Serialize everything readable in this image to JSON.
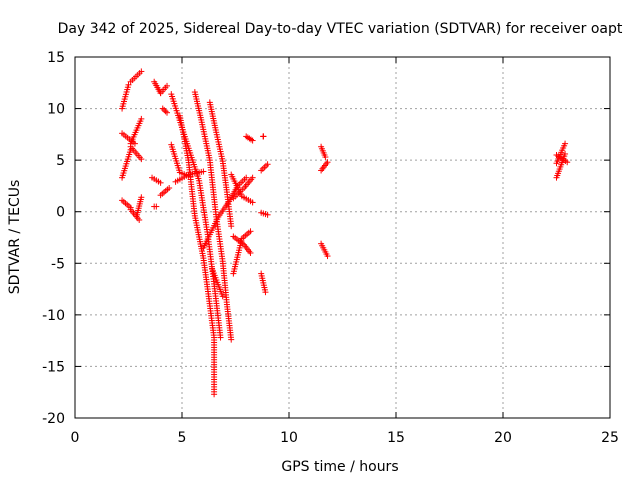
{
  "chart_data": {
    "type": "scatter",
    "title": "Day 342 of 2025, Sidereal Day-to-day VTEC variation (SDTVAR) for receiver oapt",
    "xlabel": "GPS time / hours",
    "ylabel": "SDTVAR / TECUs",
    "xlim": [
      0,
      25
    ],
    "ylim": [
      -20,
      15
    ],
    "xticks": [
      0,
      5,
      10,
      15,
      20,
      25
    ],
    "yticks": [
      -20,
      -15,
      -10,
      -5,
      0,
      5,
      10,
      15
    ],
    "grid": true,
    "marker": "+",
    "color": "#ff0000",
    "segments": [
      {
        "points": [
          [
            2.2,
            10.0
          ],
          [
            2.5,
            12.3
          ]
        ]
      },
      {
        "points": [
          [
            2.6,
            12.6
          ],
          [
            3.1,
            13.6
          ]
        ]
      },
      {
        "points": [
          [
            2.2,
            7.6
          ],
          [
            2.8,
            6.6
          ]
        ]
      },
      {
        "points": [
          [
            2.6,
            6.6
          ],
          [
            3.1,
            9.0
          ]
        ]
      },
      {
        "points": [
          [
            2.6,
            6.3
          ],
          [
            3.1,
            5.1
          ]
        ]
      },
      {
        "points": [
          [
            2.2,
            3.3
          ],
          [
            2.6,
            6.0
          ]
        ]
      },
      {
        "points": [
          [
            2.2,
            1.1
          ],
          [
            2.6,
            0.4
          ]
        ]
      },
      {
        "points": [
          [
            2.6,
            0.2
          ],
          [
            3.0,
            -0.8
          ]
        ]
      },
      {
        "points": [
          [
            2.9,
            -0.3
          ],
          [
            3.1,
            1.4
          ]
        ]
      },
      {
        "points": [
          [
            3.7,
            12.6
          ],
          [
            4.0,
            11.5
          ]
        ]
      },
      {
        "points": [
          [
            4.0,
            11.5
          ],
          [
            4.3,
            12.2
          ]
        ]
      },
      {
        "points": [
          [
            4.1,
            10.0
          ],
          [
            4.3,
            9.6
          ]
        ]
      },
      {
        "points": [
          [
            3.6,
            3.3
          ],
          [
            4.0,
            2.8
          ]
        ]
      },
      {
        "points": [
          [
            4.0,
            1.6
          ],
          [
            4.4,
            2.3
          ]
        ]
      },
      {
        "points": [
          [
            3.7,
            0.5
          ],
          [
            3.8,
            0.5
          ]
        ]
      },
      {
        "points": [
          [
            4.5,
            6.5
          ],
          [
            4.9,
            3.8
          ],
          [
            5.4,
            3.4
          ]
        ]
      },
      {
        "points": [
          [
            4.7,
            2.9
          ],
          [
            5.3,
            3.6
          ],
          [
            6.0,
            3.9
          ]
        ]
      },
      {
        "points": [
          [
            4.5,
            11.4
          ],
          [
            5.1,
            7.5
          ],
          [
            5.8,
            3.0
          ],
          [
            6.2,
            -2.2
          ],
          [
            6.5,
            -7.0
          ],
          [
            6.8,
            -12.2
          ]
        ]
      },
      {
        "points": [
          [
            4.9,
            9.3
          ],
          [
            5.3,
            5.0
          ],
          [
            5.6,
            -0.4
          ],
          [
            6.0,
            -4.5
          ],
          [
            6.2,
            -7.5
          ],
          [
            6.5,
            -12.2
          ],
          [
            6.5,
            -17.7
          ]
        ]
      },
      {
        "points": [
          [
            5.6,
            11.6
          ],
          [
            5.9,
            8.9
          ],
          [
            6.3,
            5.0
          ],
          [
            6.6,
            -0.5
          ],
          [
            6.9,
            -4.8
          ],
          [
            7.1,
            -9.0
          ],
          [
            7.3,
            -12.4
          ]
        ]
      },
      {
        "points": [
          [
            6.3,
            10.6
          ],
          [
            6.6,
            7.7
          ],
          [
            6.9,
            4.9
          ],
          [
            7.1,
            1.9
          ],
          [
            7.3,
            -1.4
          ]
        ]
      },
      {
        "points": [
          [
            6.0,
            -3.5
          ],
          [
            6.7,
            -0.5
          ],
          [
            7.2,
            1.0
          ],
          [
            7.6,
            2.5
          ],
          [
            8.0,
            3.3
          ]
        ]
      },
      {
        "points": [
          [
            6.4,
            -5.5
          ],
          [
            6.9,
            -8.2
          ]
        ]
      },
      {
        "points": [
          [
            7.4,
            -2.4
          ],
          [
            7.9,
            -3.2
          ],
          [
            8.2,
            -4.0
          ]
        ]
      },
      {
        "points": [
          [
            7.4,
            1.3
          ],
          [
            7.9,
            2.3
          ],
          [
            8.3,
            3.3
          ]
        ]
      },
      {
        "points": [
          [
            7.3,
            3.6
          ],
          [
            7.8,
            1.5
          ],
          [
            8.3,
            0.9
          ]
        ]
      },
      {
        "points": [
          [
            7.4,
            -6.0
          ],
          [
            7.8,
            -2.6
          ],
          [
            8.2,
            -1.9
          ]
        ]
      },
      {
        "points": [
          [
            8.0,
            7.3
          ],
          [
            8.3,
            6.9
          ]
        ]
      },
      {
        "points": [
          [
            8.7,
            4.0
          ],
          [
            9.0,
            4.6
          ]
        ]
      },
      {
        "points": [
          [
            8.8,
            7.3
          ],
          [
            8.8,
            7.3
          ]
        ]
      },
      {
        "points": [
          [
            8.7,
            -0.1
          ],
          [
            9.0,
            -0.3
          ]
        ]
      },
      {
        "points": [
          [
            8.7,
            -6.0
          ],
          [
            8.9,
            -7.8
          ]
        ]
      },
      {
        "points": [
          [
            11.5,
            6.3
          ],
          [
            11.7,
            5.3
          ]
        ]
      },
      {
        "points": [
          [
            11.5,
            4.0
          ],
          [
            11.8,
            4.8
          ]
        ]
      },
      {
        "points": [
          [
            11.5,
            -3.1
          ],
          [
            11.8,
            -4.3
          ]
        ]
      },
      {
        "points": [
          [
            22.5,
            4.7
          ],
          [
            22.9,
            6.6
          ]
        ]
      },
      {
        "points": [
          [
            22.5,
            5.5
          ],
          [
            23.0,
            4.8
          ]
        ]
      },
      {
        "points": [
          [
            22.5,
            3.3
          ],
          [
            22.9,
            5.6
          ]
        ]
      }
    ]
  }
}
